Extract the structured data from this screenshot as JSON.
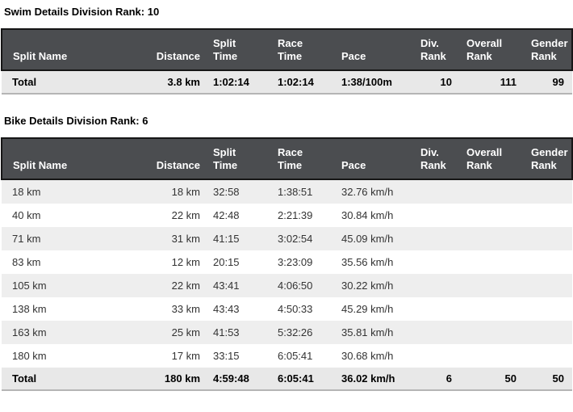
{
  "colors": {
    "header_bg": "#4b4d50",
    "header_border": "#161616",
    "header_text": "#ffffff",
    "row_odd_bg": "#eeeeee",
    "row_even_bg": "#ffffff",
    "total_row_bg": "#e8e8e8",
    "table_bottom_border": "#b5b5b5",
    "cell_text": "#333333",
    "title_text": "#000000"
  },
  "columns": [
    {
      "key": "split-name",
      "label": "Split Name"
    },
    {
      "key": "distance",
      "label": "Distance"
    },
    {
      "key": "split-time",
      "label": "Split\nTime"
    },
    {
      "key": "race-time",
      "label": "Race\nTime"
    },
    {
      "key": "pace",
      "label": "Pace"
    },
    {
      "key": "div-rank",
      "label": "Div.\nRank"
    },
    {
      "key": "overall-rank",
      "label": "Overall\nRank"
    },
    {
      "key": "gender-rank",
      "label": "Gender\nRank"
    }
  ],
  "tables": [
    {
      "id": "swim",
      "title": "Swim Details Division Rank: 10",
      "rows": [
        {
          "total": true,
          "cells": [
            "Total",
            "3.8 km",
            "1:02:14",
            "1:02:14",
            "1:38/100m",
            "10",
            "111",
            "99"
          ]
        }
      ]
    },
    {
      "id": "bike",
      "title": "Bike Details Division Rank: 6",
      "rows": [
        {
          "total": false,
          "cells": [
            "18 km",
            "18 km",
            "32:58",
            "1:38:51",
            "32.76 km/h",
            "",
            "",
            ""
          ]
        },
        {
          "total": false,
          "cells": [
            "40 km",
            "22 km",
            "42:48",
            "2:21:39",
            "30.84 km/h",
            "",
            "",
            ""
          ]
        },
        {
          "total": false,
          "cells": [
            "71 km",
            "31 km",
            "41:15",
            "3:02:54",
            "45.09 km/h",
            "",
            "",
            ""
          ]
        },
        {
          "total": false,
          "cells": [
            "83 km",
            "12 km",
            "20:15",
            "3:23:09",
            "35.56 km/h",
            "",
            "",
            ""
          ]
        },
        {
          "total": false,
          "cells": [
            "105 km",
            "22 km",
            "43:41",
            "4:06:50",
            "30.22 km/h",
            "",
            "",
            ""
          ]
        },
        {
          "total": false,
          "cells": [
            "138 km",
            "33 km",
            "43:43",
            "4:50:33",
            "45.29 km/h",
            "",
            "",
            ""
          ]
        },
        {
          "total": false,
          "cells": [
            "163 km",
            "25 km",
            "41:53",
            "5:32:26",
            "35.81 km/h",
            "",
            "",
            ""
          ]
        },
        {
          "total": false,
          "cells": [
            "180 km",
            "17 km",
            "33:15",
            "6:05:41",
            "30.68 km/h",
            "",
            "",
            ""
          ]
        },
        {
          "total": true,
          "cells": [
            "Total",
            "180 km",
            "4:59:48",
            "6:05:41",
            "36.02 km/h",
            "6",
            "50",
            "50"
          ]
        }
      ]
    }
  ]
}
